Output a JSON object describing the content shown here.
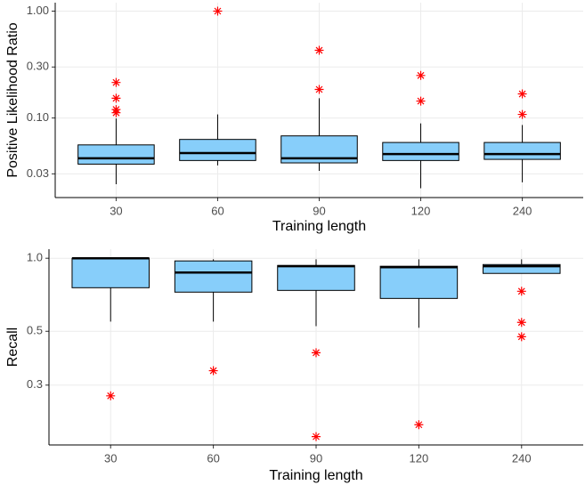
{
  "chart_data": [
    {
      "type": "box",
      "x_label": "Training length",
      "y_label": "Positive Likelihood Ratio",
      "categories": [
        "30",
        "60",
        "90",
        "120",
        "240"
      ],
      "log_y": true,
      "grid": true,
      "fill": "#87CEFA",
      "outlier_color": "#FF0000",
      "ylim": [
        0.018,
        1.2
      ],
      "yticks": [
        {
          "value": 0.03,
          "label": "0.03"
        },
        {
          "value": 0.1,
          "label": "0.10"
        },
        {
          "value": 0.3,
          "label": "0.30"
        },
        {
          "value": 1,
          "label": "1.00"
        }
      ],
      "boxes": [
        {
          "low": 0.024,
          "q1": 0.037,
          "median": 0.042,
          "q3": 0.056,
          "high": 0.099,
          "outliers": [
            0.215,
            0.153,
            0.12,
            0.112
          ]
        },
        {
          "low": 0.036,
          "q1": 0.04,
          "median": 0.047,
          "q3": 0.063,
          "high": 0.108,
          "outliers": [
            1.0
          ]
        },
        {
          "low": 0.032,
          "q1": 0.038,
          "median": 0.042,
          "q3": 0.068,
          "high": 0.153,
          "outliers": [
            0.43,
            0.185
          ]
        },
        {
          "low": 0.022,
          "q1": 0.04,
          "median": 0.046,
          "q3": 0.059,
          "high": 0.089,
          "outliers": [
            0.25,
            0.144
          ]
        },
        {
          "low": 0.025,
          "q1": 0.041,
          "median": 0.046,
          "q3": 0.059,
          "high": 0.086,
          "outliers": [
            0.168,
            0.108
          ]
        }
      ]
    },
    {
      "type": "box",
      "x_label": "Training length",
      "y_label": "Recall",
      "categories": [
        "30",
        "60",
        "90",
        "120",
        "240"
      ],
      "log_y": true,
      "grid": true,
      "fill": "#87CEFA",
      "outlier_color": "#FF0000",
      "ylim": [
        0.17,
        1.09
      ],
      "yticks": [
        0.3,
        0.5,
        {
          "value": 1,
          "label": "1.0"
        }
      ],
      "boxes": [
        {
          "low": 0.548,
          "q1": 0.756,
          "median": 1.0,
          "q3": 1.0,
          "high": 1.0,
          "outliers": [
            0.271
          ]
        },
        {
          "low": 0.548,
          "q1": 0.725,
          "median": 0.873,
          "q3": 0.975,
          "high": 0.99,
          "outliers": [
            0.344
          ]
        },
        {
          "low": 0.525,
          "q1": 0.737,
          "median": 0.927,
          "q3": 0.934,
          "high": 0.99,
          "outliers": [
            0.408,
            0.184
          ]
        },
        {
          "low": 0.517,
          "q1": 0.683,
          "median": 0.919,
          "q3": 0.927,
          "high": 0.99,
          "outliers": [
            0.206
          ]
        },
        {
          "low": 0.866,
          "q1": 0.866,
          "median": 0.927,
          "q3": 0.942,
          "high": 0.99,
          "outliers": [
            0.731,
            0.544,
            0.475
          ]
        }
      ]
    }
  ]
}
